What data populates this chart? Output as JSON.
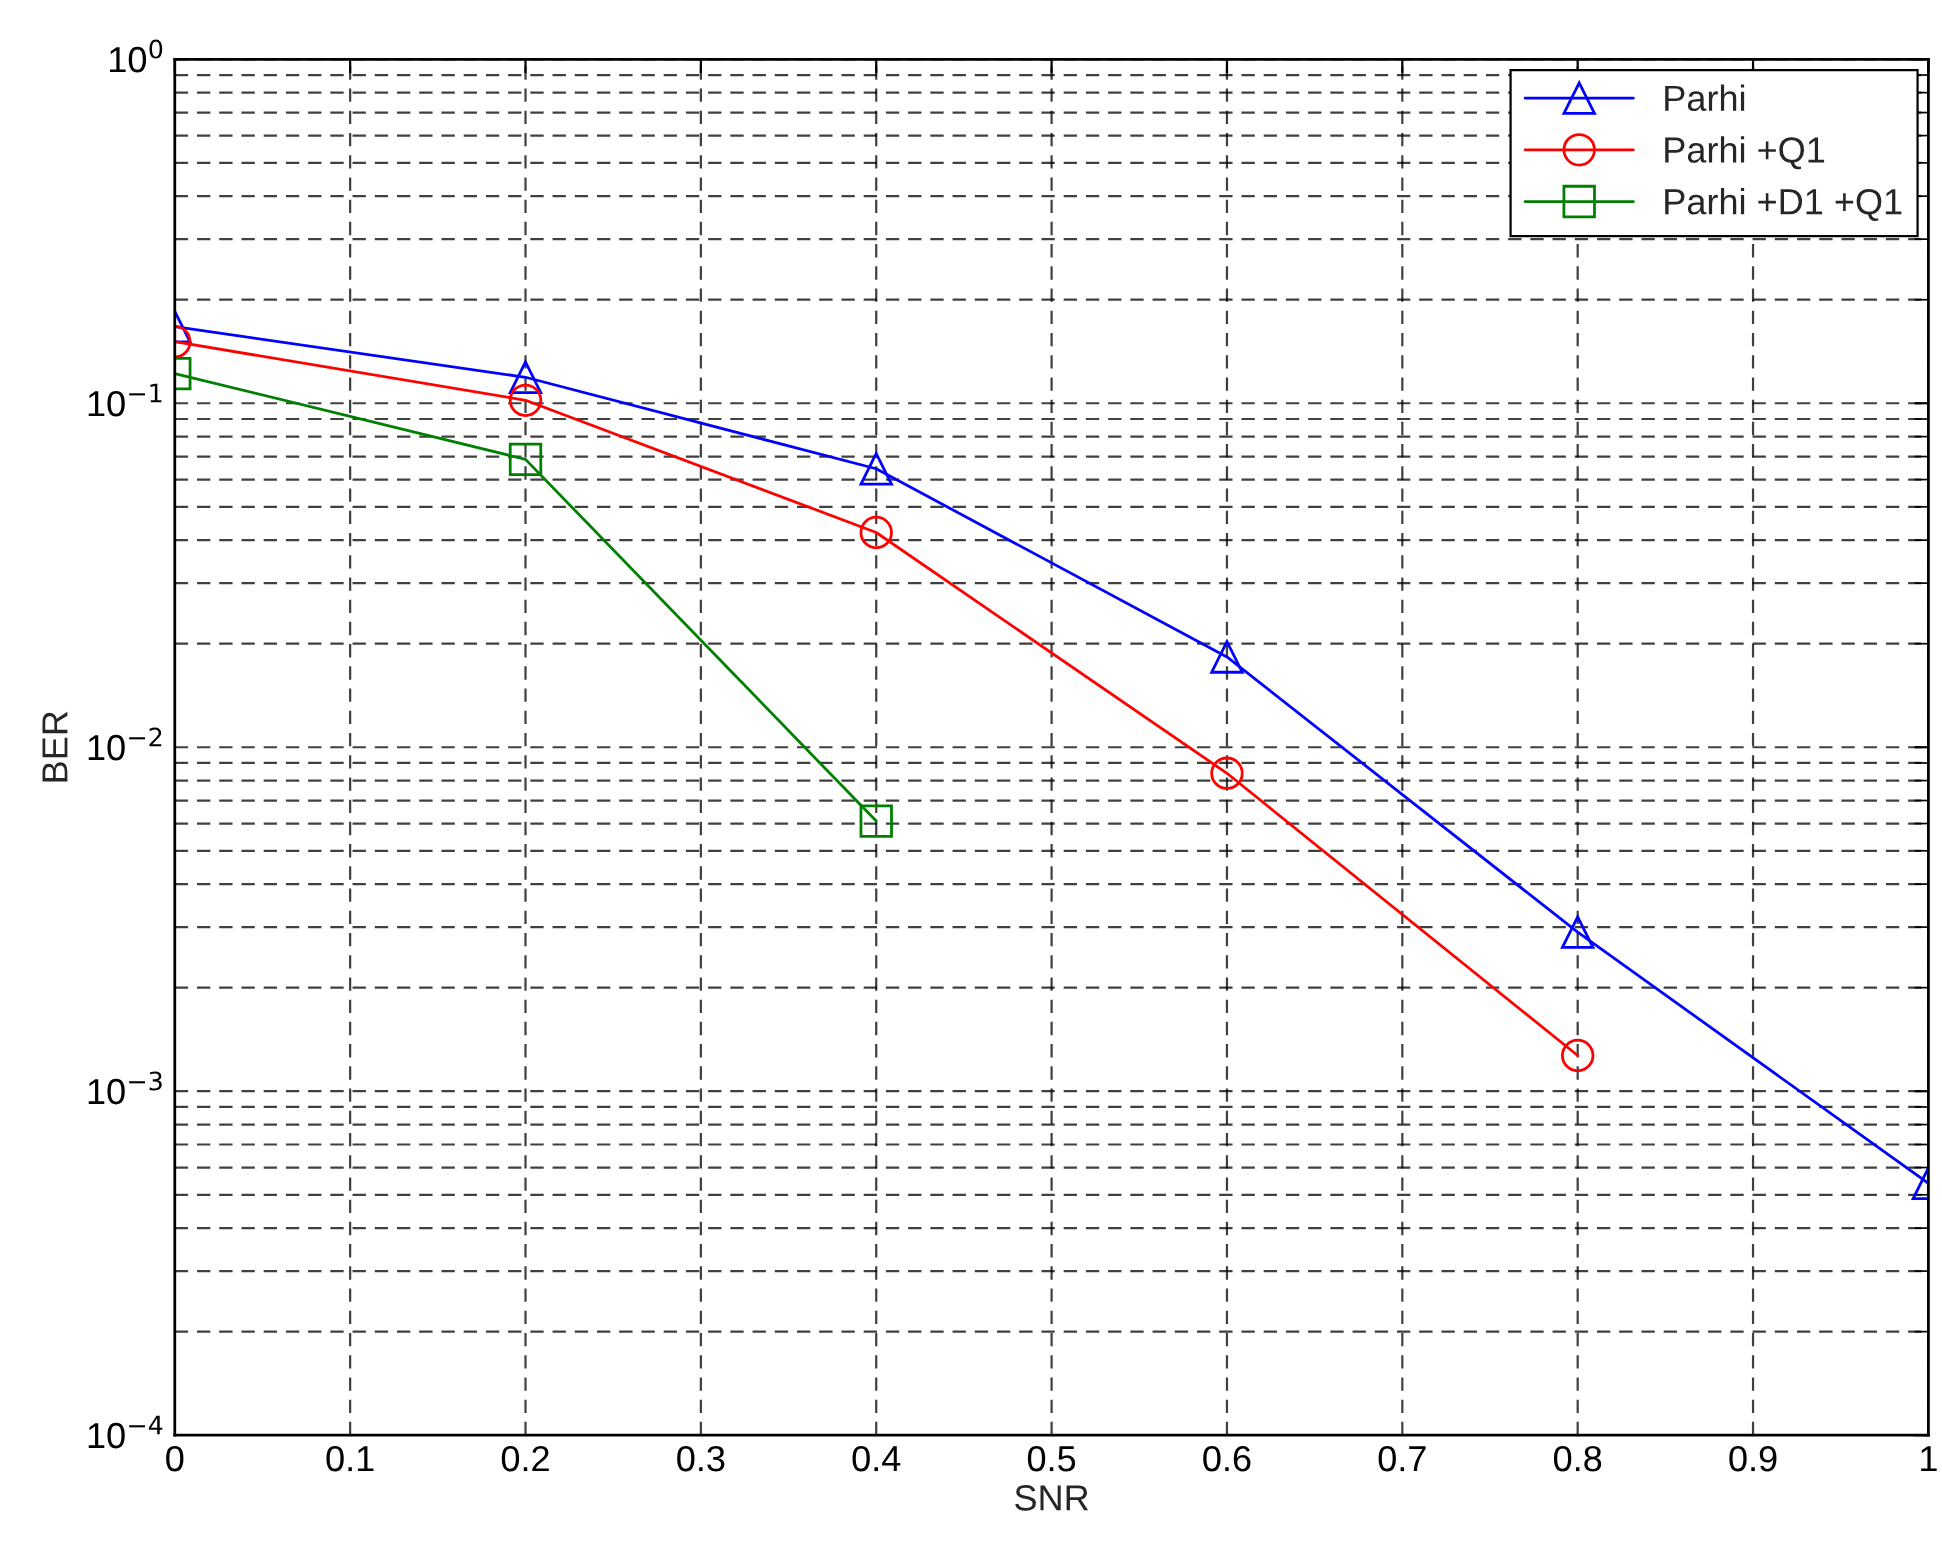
{
  "chart_data": {
    "type": "line",
    "xlabel": "SNR",
    "ylabel": "BER",
    "log": "y",
    "xlim": [
      0,
      1
    ],
    "xticks": [
      0,
      0.1,
      0.2,
      0.3,
      0.4,
      0.5,
      0.6,
      0.7,
      0.8,
      0.9,
      1
    ],
    "ylim": [
      0.0001,
      1
    ],
    "yticks": [
      {
        "value": 0.0001,
        "label": "10$^{−4}$"
      },
      {
        "value": 0.001,
        "label": "10$^{−3}$"
      },
      {
        "value": 0.01,
        "label": "10$^{−2}$"
      },
      {
        "value": 0.1,
        "label": "10$^{−1}$"
      },
      {
        "value": 1,
        "label": "10$^{0}$"
      }
    ],
    "grid": true,
    "legend": "top right",
    "line_style": "solid",
    "series": [
      {
        "name": "Parhi",
        "color": "#0000ff",
        "marker": "triangle",
        "x": [
          0,
          0.2,
          0.4,
          0.6,
          0.8,
          1
        ],
        "values": [
          0.167,
          0.119,
          0.0645,
          0.0183,
          0.0029,
          0.00054
        ]
      },
      {
        "name": "Parhi +Q1",
        "color": "#ff0000",
        "marker": "circle",
        "x": [
          0,
          0.2,
          0.4,
          0.6,
          0.8
        ],
        "values": [
          0.151,
          0.102,
          0.0421,
          0.0084,
          0.00127
        ]
      },
      {
        "name": "Parhi +D1 +Q1",
        "color": "#008000",
        "marker": "square",
        "x": [
          0,
          0.2,
          0.4
        ],
        "values": [
          0.122,
          0.0687,
          0.0061
        ]
      }
    ]
  }
}
